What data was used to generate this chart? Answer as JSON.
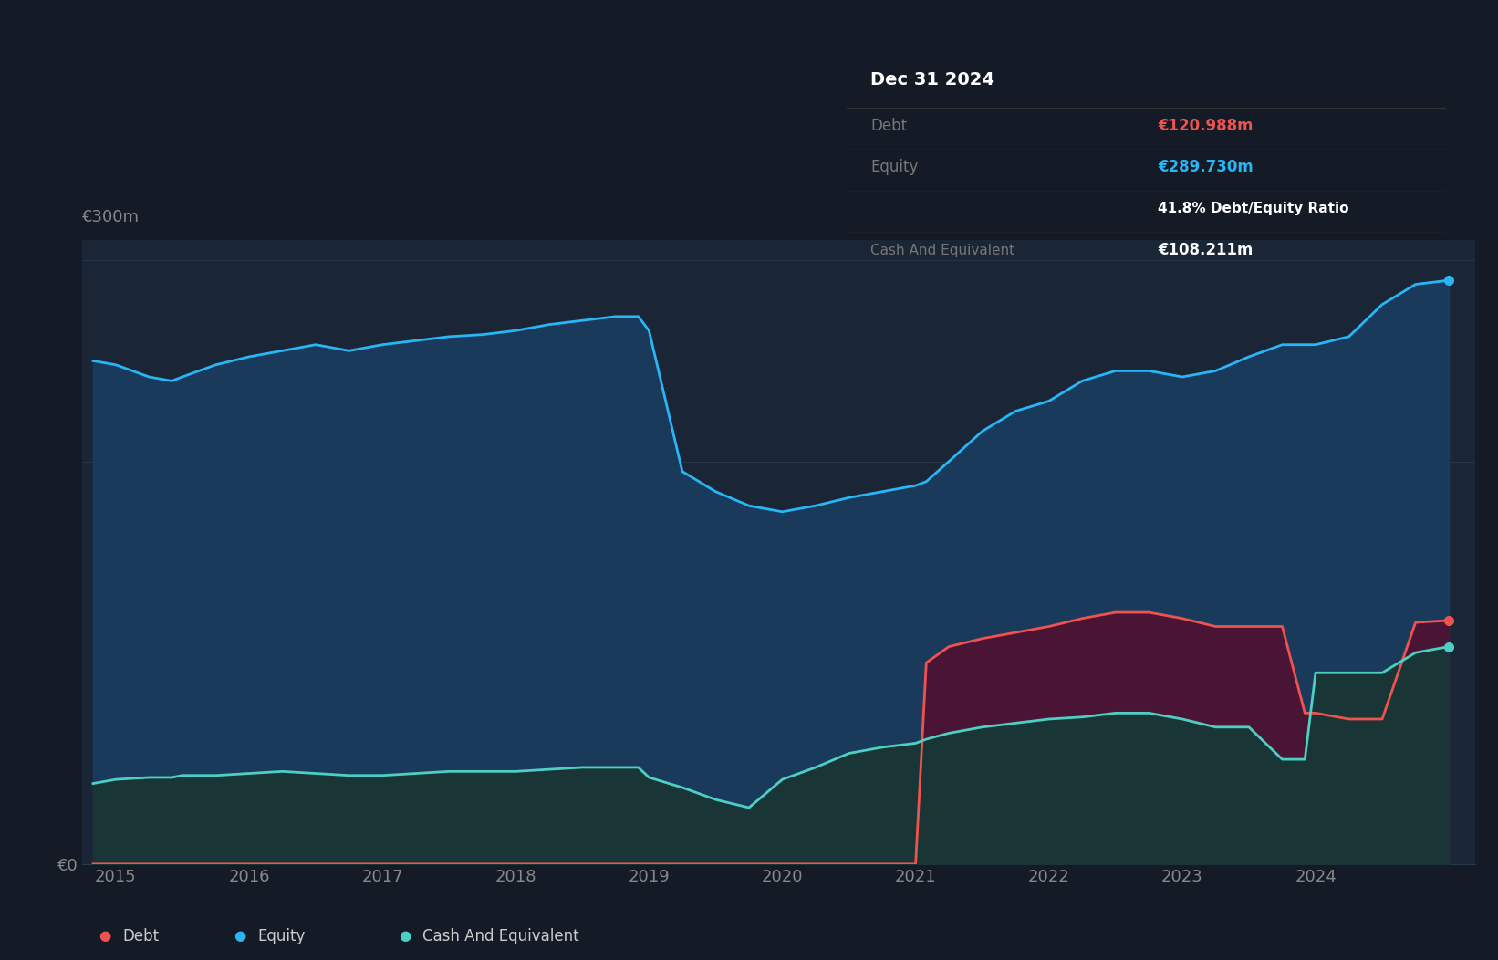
{
  "background_color": "#141b26",
  "plot_bg_color": "#141b26",
  "chart_area_color": "#1a2535",
  "title_box_bg": "#080808",
  "years": [
    2014.83,
    2015.0,
    2015.25,
    2015.42,
    2015.5,
    2015.75,
    2016.0,
    2016.25,
    2016.5,
    2016.75,
    2017.0,
    2017.25,
    2017.5,
    2017.75,
    2018.0,
    2018.25,
    2018.5,
    2018.75,
    2018.92,
    2019.0,
    2019.25,
    2019.5,
    2019.75,
    2020.0,
    2020.25,
    2020.5,
    2020.75,
    2021.0,
    2021.08,
    2021.25,
    2021.5,
    2021.75,
    2022.0,
    2022.25,
    2022.5,
    2022.75,
    2023.0,
    2023.25,
    2023.5,
    2023.75,
    2023.92,
    2024.0,
    2024.25,
    2024.5,
    2024.75,
    2025.0
  ],
  "equity": [
    250,
    248,
    242,
    240,
    242,
    248,
    252,
    255,
    258,
    255,
    258,
    260,
    262,
    263,
    265,
    268,
    270,
    272,
    272,
    265,
    195,
    185,
    178,
    175,
    178,
    182,
    185,
    188,
    190,
    200,
    215,
    225,
    230,
    240,
    245,
    245,
    242,
    245,
    252,
    258,
    258,
    258,
    262,
    278,
    288,
    290
  ],
  "debt": [
    0,
    0,
    0,
    0,
    0,
    0,
    0,
    0,
    0,
    0,
    0,
    0,
    0,
    0,
    0,
    0,
    0,
    0,
    0,
    0,
    0,
    0,
    0,
    0,
    0,
    0,
    0,
    0,
    100,
    108,
    112,
    115,
    118,
    122,
    125,
    125,
    122,
    118,
    118,
    118,
    75,
    75,
    72,
    72,
    120,
    121
  ],
  "cash": [
    40,
    42,
    43,
    43,
    44,
    44,
    45,
    46,
    45,
    44,
    44,
    45,
    46,
    46,
    46,
    47,
    48,
    48,
    48,
    43,
    38,
    32,
    28,
    42,
    48,
    55,
    58,
    60,
    62,
    65,
    68,
    70,
    72,
    73,
    75,
    75,
    72,
    68,
    68,
    52,
    52,
    95,
    95,
    95,
    105,
    108
  ],
  "ylim": [
    0,
    310
  ],
  "equity_color": "#29b6f6",
  "debt_color": "#ef5350",
  "cash_color": "#4dd0c4",
  "equity_fill": "#1a3a5c",
  "debt_fill": "#4a1535",
  "cash_fill": "#1a3535",
  "tooltip_title": "Dec 31 2024",
  "tooltip_debt": "€120.988m",
  "tooltip_equity": "€289.730m",
  "tooltip_ratio": "41.8% Debt/Equity Ratio",
  "tooltip_cash": "€108.211m",
  "legend_items": [
    "Debt",
    "Equity",
    "Cash And Equivalent"
  ],
  "legend_colors": [
    "#ef5350",
    "#29b6f6",
    "#4dd0c4"
  ],
  "xmin": 2014.75,
  "xmax": 2025.2,
  "xticks": [
    2015,
    2016,
    2017,
    2018,
    2019,
    2020,
    2021,
    2022,
    2023,
    2024
  ],
  "xtick_labels": [
    "2015",
    "2016",
    "2017",
    "2018",
    "2019",
    "2020",
    "2021",
    "2022",
    "2023",
    "2024"
  ]
}
